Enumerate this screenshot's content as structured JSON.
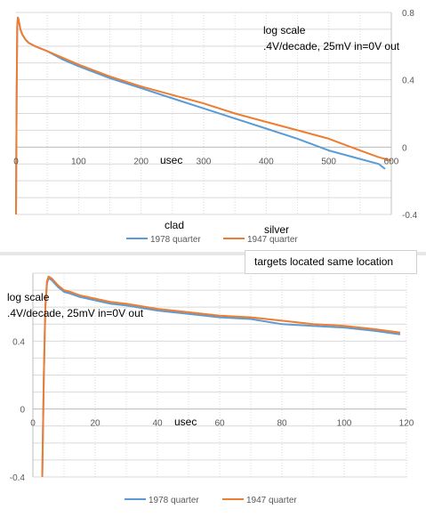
{
  "colors": {
    "series_1978": "#5b9bd5",
    "series_1947": "#ed7d31"
  },
  "charts": [
    {
      "annotation_line1": "log scale",
      "annotation_line2": ".4V/decade, 25mV in=0V out",
      "xlabel": "usec",
      "top_label_left": "clad",
      "top_label_right": "silver",
      "legend": [
        "1978 quarter",
        "1947 quarter"
      ]
    },
    {
      "annotation_line1": "log scale",
      "annotation_line2": ".4V/decade, 25mV in=0V out",
      "xlabel": "usec",
      "legend": [
        "1978 quarter",
        "1947 quarter"
      ]
    }
  ],
  "callout": "targets located same location",
  "chart_data": [
    {
      "type": "line",
      "xlim": [
        0,
        600
      ],
      "ylim": [
        -0.4,
        0.8
      ],
      "x_ticks": [
        0,
        100,
        200,
        300,
        400,
        500,
        600
      ],
      "y_ticks": [
        "0.8",
        "0.4",
        "0",
        "-0.4"
      ],
      "series": [
        {
          "name": "1978 quarter",
          "x": [
            0,
            1,
            2,
            3,
            4,
            5,
            7,
            10,
            15,
            20,
            30,
            50,
            75,
            100,
            150,
            200,
            250,
            300,
            350,
            400,
            450,
            500,
            550,
            580,
            590
          ],
          "y": [
            -0.4,
            0.3,
            0.72,
            0.77,
            0.76,
            0.74,
            0.7,
            0.67,
            0.64,
            0.62,
            0.6,
            0.57,
            0.52,
            0.48,
            0.41,
            0.35,
            0.29,
            0.23,
            0.17,
            0.11,
            0.05,
            -0.02,
            -0.07,
            -0.1,
            -0.13
          ]
        },
        {
          "name": "1947 quarter",
          "x": [
            0,
            1,
            2,
            3,
            4,
            5,
            7,
            10,
            15,
            20,
            30,
            50,
            75,
            100,
            150,
            200,
            250,
            300,
            350,
            400,
            450,
            500,
            550,
            580,
            600
          ],
          "y": [
            -0.4,
            0.3,
            0.72,
            0.77,
            0.76,
            0.74,
            0.7,
            0.67,
            0.64,
            0.62,
            0.6,
            0.57,
            0.53,
            0.49,
            0.42,
            0.36,
            0.31,
            0.26,
            0.2,
            0.15,
            0.1,
            0.05,
            -0.02,
            -0.06,
            -0.08
          ]
        }
      ]
    },
    {
      "type": "line",
      "xlim": [
        0,
        120
      ],
      "ylim": [
        -0.4,
        0.8
      ],
      "x_ticks": [
        0,
        20,
        40,
        60,
        80,
        100,
        120
      ],
      "y_ticks": [
        "0.4",
        "0",
        "-0.4"
      ],
      "series": [
        {
          "name": "1978 quarter",
          "x": [
            3,
            3.5,
            4,
            4.5,
            5,
            6,
            7,
            8,
            10,
            12,
            15,
            20,
            25,
            30,
            40,
            50,
            60,
            70,
            80,
            90,
            100,
            110,
            118
          ],
          "y": [
            -0.4,
            0.2,
            0.6,
            0.74,
            0.77,
            0.76,
            0.74,
            0.72,
            0.69,
            0.68,
            0.66,
            0.64,
            0.62,
            0.61,
            0.58,
            0.56,
            0.54,
            0.53,
            0.5,
            0.49,
            0.48,
            0.46,
            0.44
          ]
        },
        {
          "name": "1947 quarter",
          "x": [
            3,
            3.5,
            4,
            4.5,
            5,
            6,
            7,
            8,
            10,
            12,
            15,
            20,
            25,
            30,
            40,
            50,
            60,
            70,
            80,
            90,
            100,
            110,
            118
          ],
          "y": [
            -0.4,
            0.2,
            0.6,
            0.75,
            0.78,
            0.77,
            0.75,
            0.73,
            0.7,
            0.69,
            0.67,
            0.65,
            0.63,
            0.62,
            0.59,
            0.57,
            0.55,
            0.54,
            0.52,
            0.5,
            0.49,
            0.47,
            0.45
          ]
        }
      ]
    }
  ]
}
